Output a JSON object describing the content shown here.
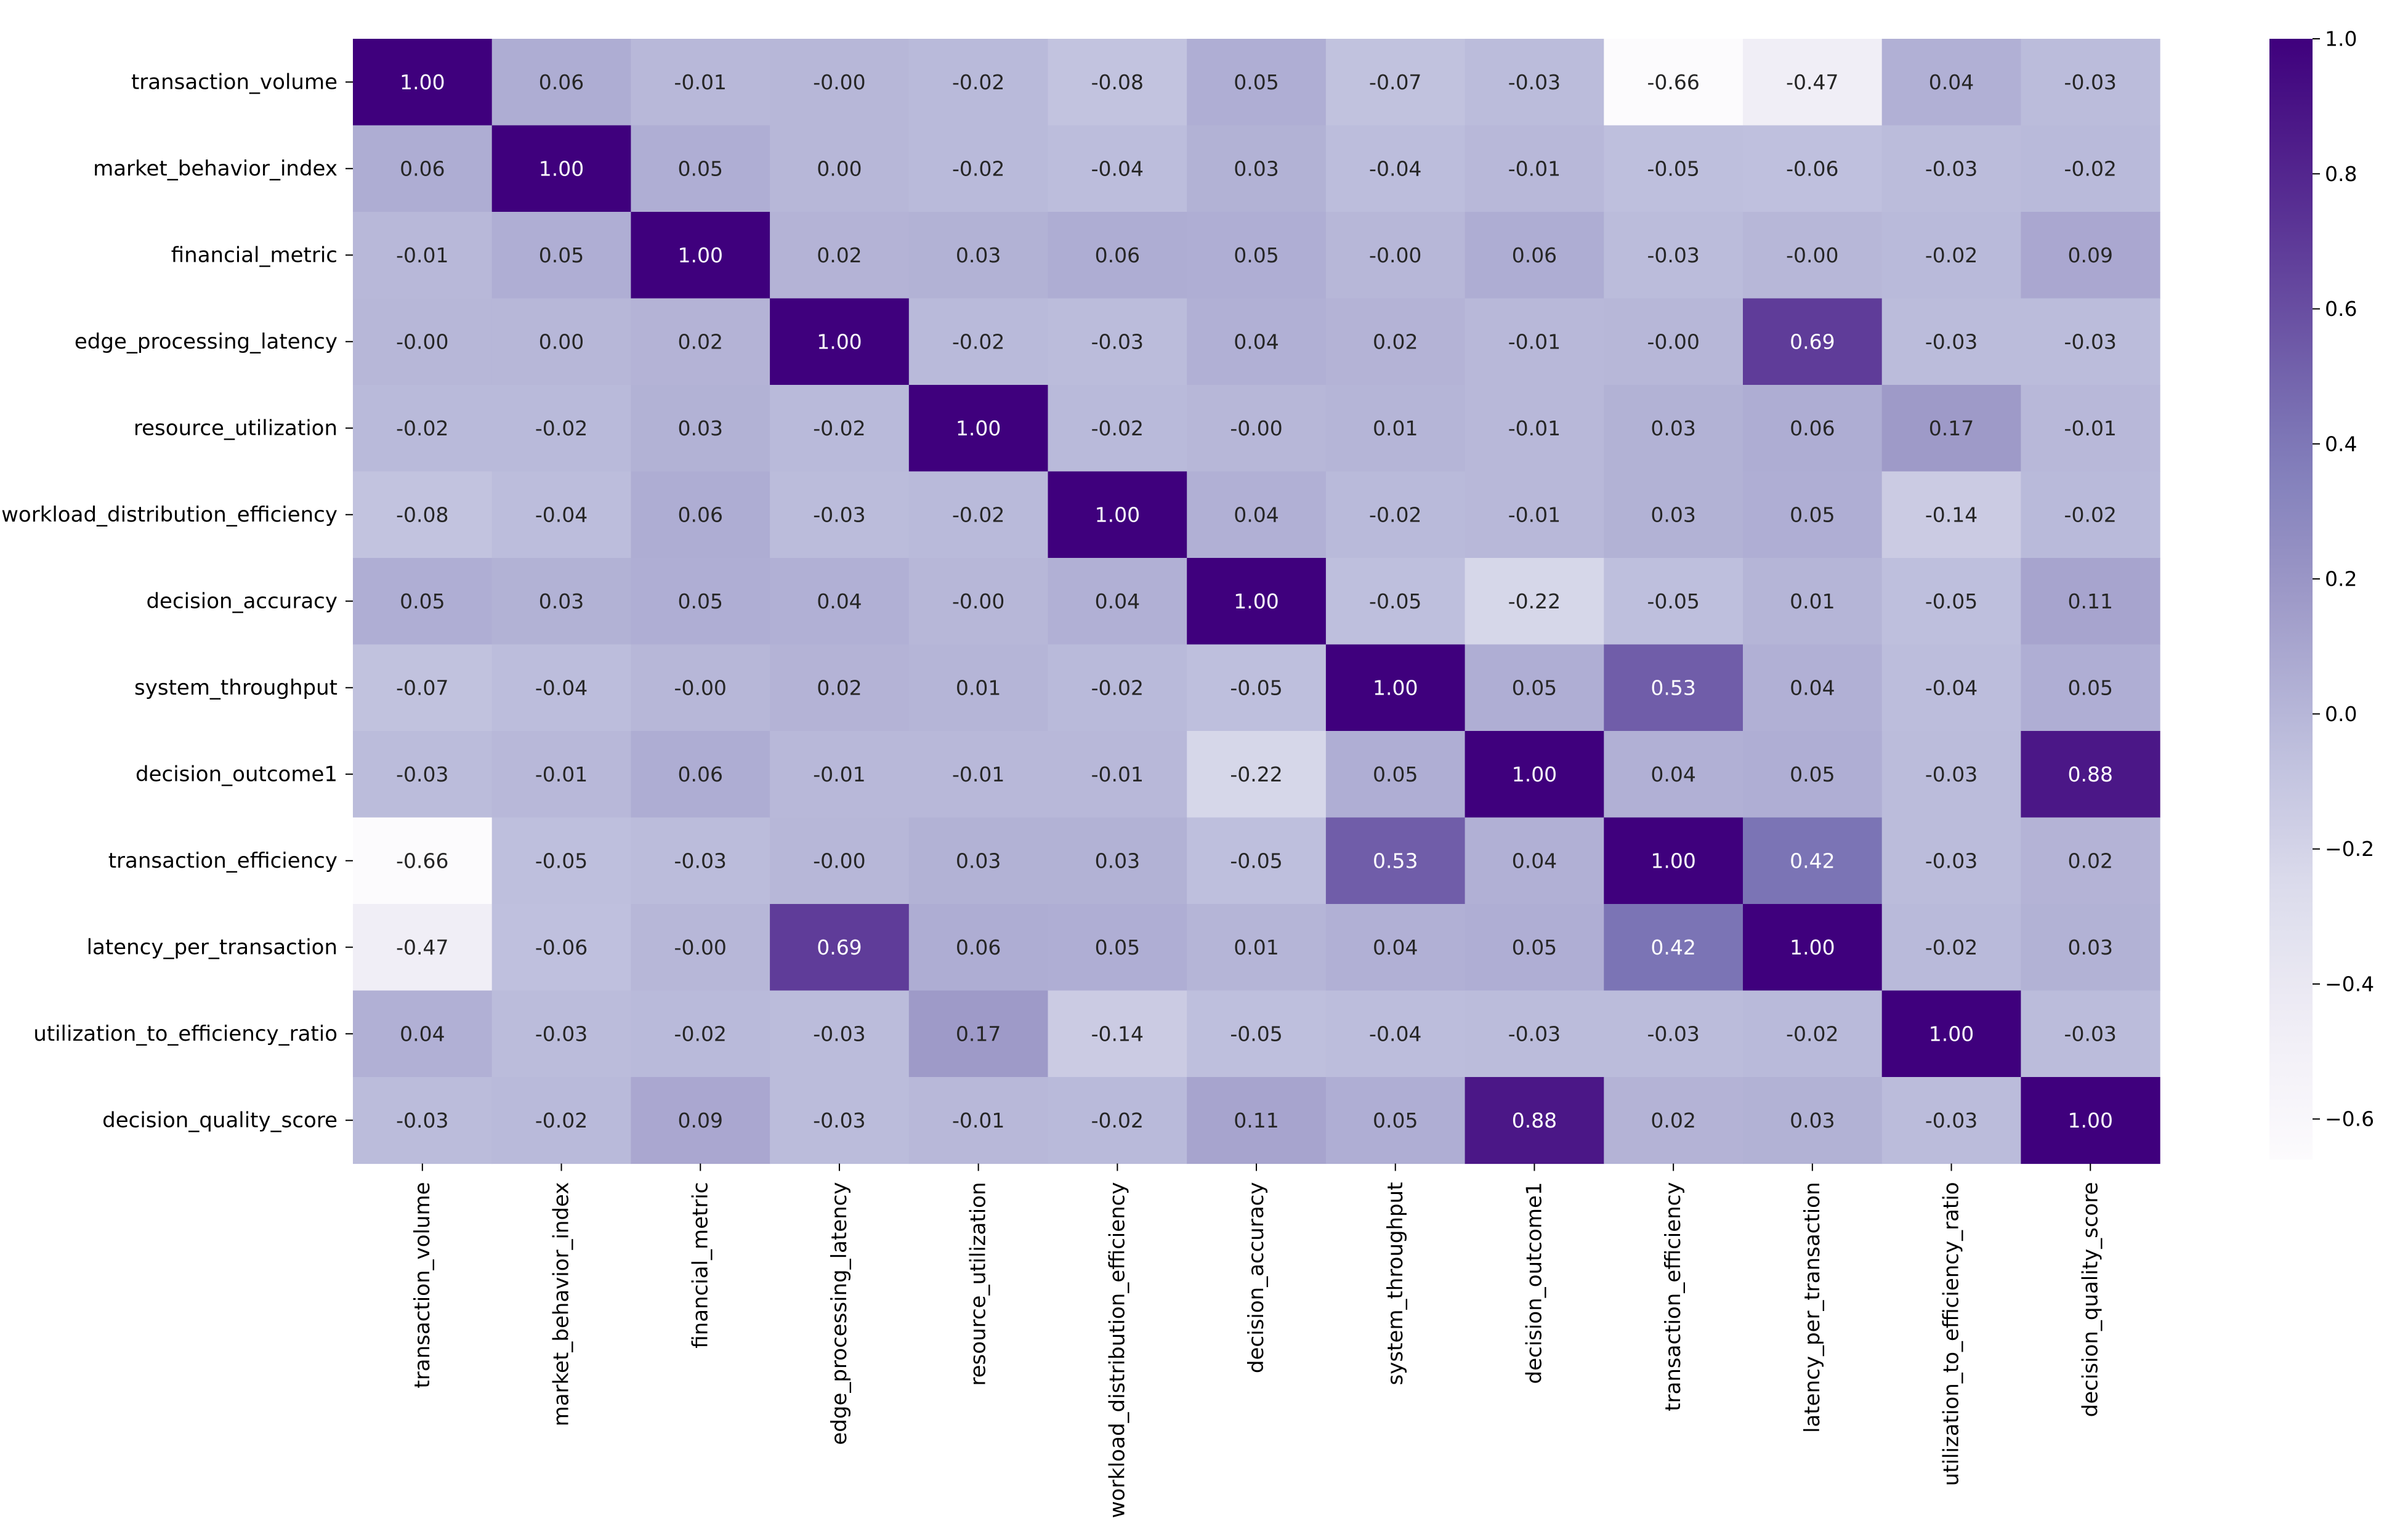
{
  "chart_data": {
    "type": "heatmap",
    "title": "",
    "xlabel": "",
    "ylabel": "",
    "colormap": "Purples",
    "colors": {
      "low": "#fcfbfd",
      "mid": "#9e9ac8",
      "high": "#3f007d"
    },
    "labels": [
      "transaction_volume",
      "market_behavior_index",
      "financial_metric",
      "edge_processing_latency",
      "resource_utilization",
      "workload_distribution_efficiency",
      "decision_accuracy",
      "system_throughput",
      "decision_outcome1",
      "transaction_efficiency",
      "latency_per_transaction",
      "utilization_to_efficiency_ratio",
      "decision_quality_score"
    ],
    "matrix": [
      [
        1.0,
        0.06,
        -0.01,
        -0.0,
        -0.02,
        -0.08,
        0.05,
        -0.07,
        -0.03,
        -0.66,
        -0.47,
        0.04,
        -0.03
      ],
      [
        0.06,
        1.0,
        0.05,
        0.0,
        -0.02,
        -0.04,
        0.03,
        -0.04,
        -0.01,
        -0.05,
        -0.06,
        -0.03,
        -0.02
      ],
      [
        -0.01,
        0.05,
        1.0,
        0.02,
        0.03,
        0.06,
        0.05,
        -0.0,
        0.06,
        -0.03,
        -0.0,
        -0.02,
        0.09
      ],
      [
        -0.0,
        0.0,
        0.02,
        1.0,
        -0.02,
        -0.03,
        0.04,
        0.02,
        -0.01,
        -0.0,
        0.69,
        -0.03,
        -0.03
      ],
      [
        -0.02,
        -0.02,
        0.03,
        -0.02,
        1.0,
        -0.02,
        -0.0,
        0.01,
        -0.01,
        0.03,
        0.06,
        0.17,
        -0.01
      ],
      [
        -0.08,
        -0.04,
        0.06,
        -0.03,
        -0.02,
        1.0,
        0.04,
        -0.02,
        -0.01,
        0.03,
        0.05,
        -0.14,
        -0.02
      ],
      [
        0.05,
        0.03,
        0.05,
        0.04,
        -0.0,
        0.04,
        1.0,
        -0.05,
        -0.22,
        -0.05,
        0.01,
        -0.05,
        0.11
      ],
      [
        -0.07,
        -0.04,
        -0.0,
        0.02,
        0.01,
        -0.02,
        -0.05,
        1.0,
        0.05,
        0.53,
        0.04,
        -0.04,
        0.05
      ],
      [
        -0.03,
        -0.01,
        0.06,
        -0.01,
        -0.01,
        -0.01,
        -0.22,
        0.05,
        1.0,
        0.04,
        0.05,
        -0.03,
        0.88
      ],
      [
        -0.66,
        -0.05,
        -0.03,
        -0.0,
        0.03,
        0.03,
        -0.05,
        0.53,
        0.04,
        1.0,
        0.42,
        -0.03,
        0.02
      ],
      [
        -0.47,
        -0.06,
        -0.0,
        0.69,
        0.06,
        0.05,
        0.01,
        0.04,
        0.05,
        0.42,
        1.0,
        -0.02,
        0.03
      ],
      [
        0.04,
        -0.03,
        -0.02,
        -0.03,
        0.17,
        -0.14,
        -0.05,
        -0.04,
        -0.03,
        -0.03,
        -0.02,
        1.0,
        -0.03
      ],
      [
        -0.03,
        -0.02,
        0.09,
        -0.03,
        -0.01,
        -0.02,
        0.11,
        0.05,
        0.88,
        0.02,
        0.03,
        -0.03,
        1.0
      ]
    ],
    "vmin": -0.66,
    "vmax": 1.0,
    "colorbar_ticks": [
      1.0,
      0.8,
      0.6,
      0.4,
      0.2,
      0.0,
      -0.2,
      -0.4,
      -0.6
    ],
    "colorbar_tick_labels": [
      "1.0",
      "0.8",
      "0.6",
      "0.4",
      "0.2",
      "0.0",
      "−0.2",
      "−0.4",
      "−0.6"
    ],
    "annotation_format": "0.00"
  }
}
